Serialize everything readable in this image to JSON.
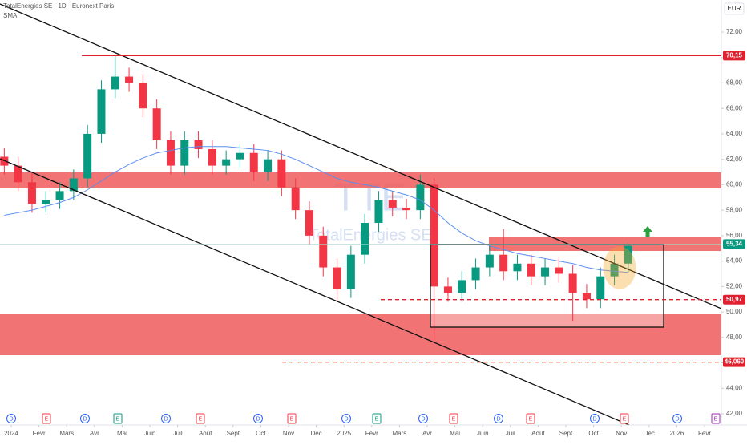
{
  "chart_data": {
    "type": "candlestick",
    "title": "TotalEnergies SE · 1D · Euronext Paris",
    "currency": "EUR",
    "watermark": "TTE",
    "watermark_subtitle": "TotalEnergies SE",
    "up_color": "#089981",
    "down_color": "#f23645",
    "x": [
      -0.25,
      0.25,
      0.75,
      1.25,
      1.75,
      2.25,
      2.75,
      3.25,
      3.75,
      4.25,
      4.75,
      5.25,
      5.75,
      6.25,
      6.75,
      7.25,
      7.75,
      8.25,
      8.75,
      9.25,
      9.75,
      10.25,
      10.75,
      11.25,
      11.75,
      12.25,
      12.75,
      13.25,
      13.75,
      14.25,
      14.75,
      15.25,
      15.75,
      16.25,
      16.75,
      17.25,
      17.75,
      18.25,
      18.75,
      19.25,
      19.75,
      20.25,
      20.75,
      21.25,
      21.75,
      22.25
    ],
    "open": [
      62.2,
      61.5,
      60.2,
      58.5,
      58.8,
      59.5,
      60.5,
      64.0,
      67.5,
      68.5,
      68.0,
      66.0,
      63.5,
      61.5,
      63.5,
      62.8,
      61.5,
      62.0,
      62.5,
      61.0,
      62.0,
      59.8,
      58.0,
      56.0,
      53.5,
      51.8,
      54.5,
      57.0,
      58.8,
      58.2,
      58.0,
      60.0,
      52.0,
      51.5,
      52.5,
      53.5,
      54.5,
      53.2,
      53.8,
      52.8,
      53.5,
      53.0,
      51.5,
      51.0,
      52.8,
      53.8
    ],
    "high": [
      62.9,
      62.2,
      60.9,
      59.5,
      60.2,
      61.2,
      64.7,
      68.2,
      70.2,
      69.2,
      68.7,
      66.7,
      64.2,
      64.2,
      64.2,
      63.5,
      62.7,
      63.2,
      63.2,
      62.7,
      62.7,
      60.5,
      58.7,
      56.7,
      54.2,
      55.2,
      57.7,
      59.5,
      59.5,
      58.9,
      60.8,
      60.5,
      52.7,
      53.2,
      54.2,
      55.2,
      56.5,
      54.5,
      54.5,
      54.2,
      54.2,
      53.7,
      52.2,
      53.5,
      54.5,
      55.4
    ],
    "low": [
      60.8,
      59.5,
      57.8,
      57.8,
      58.1,
      58.8,
      59.8,
      63.3,
      66.8,
      67.3,
      65.3,
      62.8,
      60.8,
      60.8,
      62.1,
      60.8,
      60.8,
      61.3,
      60.3,
      60.3,
      59.1,
      57.3,
      55.3,
      52.8,
      50.8,
      51.1,
      53.8,
      56.3,
      57.5,
      57.3,
      57.3,
      47.8,
      50.8,
      50.8,
      51.8,
      52.8,
      52.5,
      52.5,
      52.1,
      52.1,
      52.3,
      49.3,
      50.3,
      50.3,
      52.1,
      53.1
    ],
    "close": [
      61.5,
      60.2,
      58.5,
      58.8,
      59.5,
      60.5,
      64.0,
      67.5,
      68.5,
      68.0,
      66.0,
      63.5,
      61.5,
      63.5,
      62.8,
      61.5,
      62.0,
      62.5,
      61.0,
      62.0,
      59.8,
      58.0,
      56.0,
      53.5,
      51.8,
      54.5,
      57.0,
      58.8,
      58.2,
      58.0,
      60.0,
      52.0,
      51.5,
      52.5,
      53.5,
      54.5,
      53.2,
      53.8,
      52.8,
      53.5,
      53.0,
      51.5,
      51.0,
      52.8,
      53.8,
      55.2
    ],
    "sma": {
      "name": "SMA",
      "color": "#5b8def",
      "values": [
        57.6,
        57.8,
        58.0,
        58.3,
        58.6,
        59.0,
        59.6,
        60.3,
        61.0,
        61.6,
        62.1,
        62.5,
        62.7,
        62.9,
        63.0,
        63.0,
        63.0,
        62.9,
        62.8,
        62.7,
        62.4,
        62.0,
        61.5,
        61.0,
        60.5,
        60.2,
        60.0,
        59.8,
        59.5,
        59.2,
        58.8,
        58.0,
        57.0,
        56.2,
        55.6,
        55.2,
        54.9,
        54.6,
        54.4,
        54.2,
        54.0,
        53.8,
        53.5,
        53.3,
        53.2,
        53.1
      ]
    },
    "levels": [
      {
        "value": 70.15,
        "label": "70,15",
        "color": "#e0202f",
        "style": "solid"
      },
      {
        "value": 55.34,
        "label": "55,34",
        "color": "#089981",
        "style": "none"
      },
      {
        "value": 50.97,
        "label": "50,97",
        "color": "#e0202f",
        "style": "dashed"
      },
      {
        "value": 46.06,
        "label": "46,060",
        "color": "#e0202f",
        "style": "dashed"
      }
    ],
    "xlim": [
      -0.405,
      25.607
    ],
    "xticks": [
      {
        "value": 0,
        "label": "2024"
      },
      {
        "value": 1,
        "label": "Févr"
      },
      {
        "value": 2,
        "label": "Mars"
      },
      {
        "value": 3,
        "label": "Avr"
      },
      {
        "value": 4,
        "label": "Mai"
      },
      {
        "value": 5,
        "label": "Juin"
      },
      {
        "value": 6,
        "label": "Juil"
      },
      {
        "value": 7,
        "label": "Août"
      },
      {
        "value": 8,
        "label": "Sept"
      },
      {
        "value": 9,
        "label": "Oct"
      },
      {
        "value": 10,
        "label": "Nov"
      },
      {
        "value": 11,
        "label": "Déc"
      },
      {
        "value": 12,
        "label": "2025"
      },
      {
        "value": 13,
        "label": "Févr"
      },
      {
        "value": 14,
        "label": "Mars"
      },
      {
        "value": 15,
        "label": "Avr"
      },
      {
        "value": 16,
        "label": "Mai"
      },
      {
        "value": 17,
        "label": "Juin"
      },
      {
        "value": 18,
        "label": "Juil"
      },
      {
        "value": 19,
        "label": "Août"
      },
      {
        "value": 20,
        "label": "Sept"
      },
      {
        "value": 21,
        "label": "Oct"
      },
      {
        "value": 22,
        "label": "Nov"
      },
      {
        "value": 23,
        "label": "Déc"
      },
      {
        "value": 24,
        "label": "2026"
      },
      {
        "value": 25,
        "label": "Févr"
      }
    ],
    "ylim": [
      41.12,
      74.52
    ],
    "yticks": [
      {
        "value": 42,
        "label": "42,00"
      },
      {
        "value": 44,
        "label": "44,00"
      },
      {
        "value": 46,
        "label": "46,00"
      },
      {
        "value": 48,
        "label": "48,00"
      },
      {
        "value": 50,
        "label": "50,00"
      },
      {
        "value": 52,
        "label": "52,00"
      },
      {
        "value": 54,
        "label": "54,00"
      },
      {
        "value": 56,
        "label": "56,00"
      },
      {
        "value": 58,
        "label": "58,00"
      },
      {
        "value": 60,
        "label": "60,00"
      },
      {
        "value": 62,
        "label": "62,00"
      },
      {
        "value": 64,
        "label": "64,00"
      },
      {
        "value": 66,
        "label": "66,00"
      },
      {
        "value": 68,
        "label": "68,00"
      },
      {
        "value": 70,
        "label": "70,00"
      },
      {
        "value": 72,
        "label": "72,00"
      }
    ],
    "events": [
      "D",
      "E",
      "D",
      "E",
      "D",
      "E",
      "D",
      "E",
      "D",
      "E",
      "D",
      "E",
      "D",
      "E",
      "D",
      "E",
      "D",
      "E"
    ]
  }
}
